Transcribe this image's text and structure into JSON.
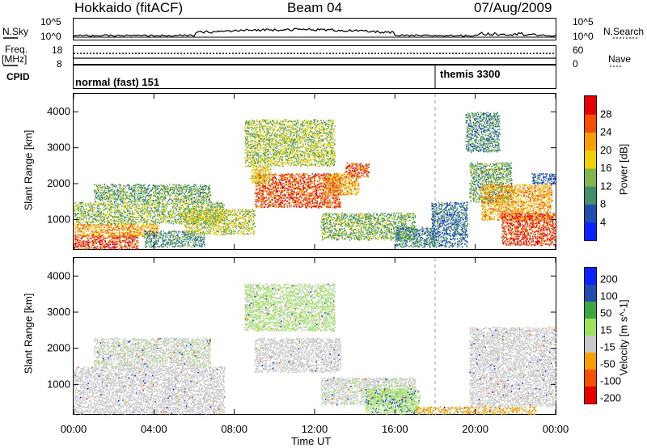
{
  "header": {
    "station": "Hokkaido (fitACF)",
    "beam": "Beam 04",
    "date": "07/Aug/2009"
  },
  "strip": {
    "nsky_label": "N.Sky",
    "nsky_ticks": [
      "10^5",
      "10^0"
    ],
    "nsearch_label": "N.Search",
    "nsearch_ticks": [
      "10^5",
      "10^0"
    ],
    "freq_label_1": "Freq.",
    "freq_label_2": "[MHz]",
    "freq_ticks": [
      "18",
      "8"
    ],
    "nave_label": "Nave",
    "nave_ticks": [
      "60",
      "0"
    ],
    "cpid_label": "CPID",
    "cpid_segments": [
      {
        "name": "normal (fast) 151",
        "start_hour": 0
      },
      {
        "name": "themis 3300",
        "start_hour": 18
      }
    ]
  },
  "chart_data": [
    {
      "type": "heatmap",
      "title": "",
      "xlabel": "",
      "ylabel": "Slant Range [km]",
      "colorbar_label": "Power [dB]",
      "xlim": [
        0,
        24
      ],
      "ylim": [
        180,
        4500
      ],
      "x_ticks": [
        "00:00",
        "04:00",
        "08:00",
        "12:00",
        "16:00",
        "20:00",
        "00:00"
      ],
      "y_ticks": [
        1000,
        2000,
        3000,
        4000
      ],
      "colorbar_ticks": [
        4,
        8,
        12,
        16,
        20,
        24,
        28
      ],
      "colorbar_range": [
        0,
        32
      ],
      "colorbar_colors": [
        "#0b22ff",
        "#1e4fb0",
        "#3f8f6a",
        "#7fb54a",
        "#f2d100",
        "#f7a000",
        "#f45000",
        "#e80000"
      ],
      "regions": [
        {
          "t0": 0.0,
          "t1": 3.2,
          "r0": 200,
          "r1": 600,
          "power": 28
        },
        {
          "t0": 0.0,
          "t1": 4.2,
          "r0": 550,
          "r1": 900,
          "power": 22
        },
        {
          "t0": 0.0,
          "t1": 7.5,
          "r0": 900,
          "r1": 1500,
          "power": 14
        },
        {
          "t0": 1.0,
          "t1": 6.8,
          "r0": 1500,
          "r1": 2000,
          "power": 12
        },
        {
          "t0": 3.5,
          "t1": 6.5,
          "r0": 250,
          "r1": 700,
          "power": 10
        },
        {
          "t0": 5.5,
          "t1": 9.0,
          "r0": 600,
          "r1": 1300,
          "power": 16
        },
        {
          "t0": 9.0,
          "t1": 13.3,
          "r0": 1350,
          "r1": 2300,
          "power": 27
        },
        {
          "t0": 8.8,
          "t1": 9.8,
          "r0": 2000,
          "r1": 2500,
          "power": 18
        },
        {
          "t0": 12.5,
          "t1": 14.2,
          "r0": 1700,
          "r1": 2300,
          "power": 22
        },
        {
          "t0": 13.5,
          "t1": 14.7,
          "r0": 2200,
          "r1": 2600,
          "power": 26
        },
        {
          "t0": 12.3,
          "t1": 17.0,
          "r0": 450,
          "r1": 1200,
          "power": 13
        },
        {
          "t0": 16.0,
          "t1": 18.0,
          "r0": 250,
          "r1": 800,
          "power": 9
        },
        {
          "t0": 8.5,
          "t1": 13.0,
          "r0": 2500,
          "r1": 3800,
          "power": 15
        },
        {
          "t0": 17.8,
          "t1": 19.6,
          "r0": 250,
          "r1": 1500,
          "power": 8
        },
        {
          "t0": 19.7,
          "t1": 21.8,
          "r0": 1500,
          "r1": 2600,
          "power": 12
        },
        {
          "t0": 20.3,
          "t1": 23.8,
          "r0": 1000,
          "r1": 2000,
          "power": 22
        },
        {
          "t0": 21.3,
          "t1": 24.0,
          "r0": 300,
          "r1": 1200,
          "power": 28
        },
        {
          "t0": 22.8,
          "t1": 24.0,
          "r0": 2000,
          "r1": 2300,
          "power": 6
        },
        {
          "t0": 19.5,
          "t1": 21.2,
          "r0": 2900,
          "r1": 4000,
          "power": 10
        }
      ]
    },
    {
      "type": "heatmap",
      "title": "",
      "xlabel": "Time UT",
      "ylabel": "Slant Range [km]",
      "colorbar_label": "Velocity [m s^-1]",
      "xlim": [
        0,
        24
      ],
      "ylim": [
        180,
        4500
      ],
      "x_ticks": [
        "00:00",
        "04:00",
        "08:00",
        "12:00",
        "16:00",
        "20:00",
        "00:00"
      ],
      "y_ticks": [
        1000,
        2000,
        3000,
        4000
      ],
      "colorbar_ticks": [
        "200",
        "100",
        "50",
        "15",
        "-15",
        "-50",
        "-100",
        "-200"
      ],
      "colorbar_range": [
        -250,
        250
      ],
      "colorbar_colors": [
        "#e80000",
        "#f45000",
        "#f7a000",
        "#c8c8c8",
        "#9be35b",
        "#3ca83c",
        "#1e4fb0",
        "#0b22ff"
      ],
      "regions": [
        {
          "t0": 0.0,
          "t1": 7.5,
          "r0": 200,
          "r1": 1500,
          "velocity": 0
        },
        {
          "t0": 1.0,
          "t1": 6.8,
          "r0": 1500,
          "r1": 2300,
          "velocity": 5
        },
        {
          "t0": 9.0,
          "t1": 13.3,
          "r0": 1350,
          "r1": 2300,
          "velocity": 0
        },
        {
          "t0": 12.3,
          "t1": 17.0,
          "r0": 450,
          "r1": 1200,
          "velocity": 5
        },
        {
          "t0": 14.5,
          "t1": 17.2,
          "r0": 200,
          "r1": 900,
          "velocity": 40
        },
        {
          "t0": 17.0,
          "t1": 23.0,
          "r0": 200,
          "r1": 400,
          "velocity": -60
        },
        {
          "t0": 19.7,
          "t1": 24.0,
          "r0": 400,
          "r1": 2600,
          "velocity": 0
        },
        {
          "t0": 8.5,
          "t1": 13.0,
          "r0": 2500,
          "r1": 3800,
          "velocity": 20
        }
      ]
    }
  ]
}
